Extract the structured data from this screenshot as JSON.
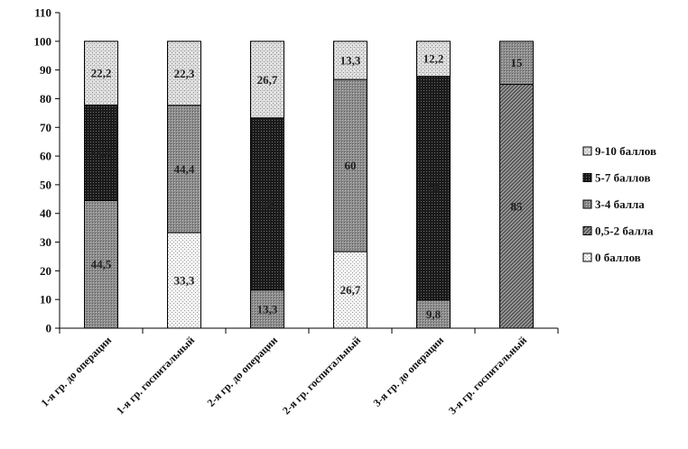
{
  "chart_data": {
    "type": "bar",
    "stacked": true,
    "title": "",
    "xlabel": "",
    "ylabel": "",
    "ylim": [
      0,
      110
    ],
    "yticks": [
      0,
      10,
      20,
      30,
      40,
      50,
      60,
      70,
      80,
      90,
      100,
      110
    ],
    "grid": false,
    "legend_position": "right",
    "categories": [
      "1-я гр. до операции",
      "1-я гр. госпитальный",
      "2-я гр. до операции",
      "2-я гр. госпитальный",
      "3-я гр. до операции",
      "3-я гр. госпитальный"
    ],
    "series": [
      {
        "name": "0 баллов",
        "values": [
          0,
          33.3,
          0,
          26.7,
          0,
          0
        ],
        "labels": [
          "",
          "33,3",
          "",
          "26,7",
          "",
          ""
        ],
        "pattern": "light-dots"
      },
      {
        "name": "0,5-2 балла",
        "values": [
          0,
          0,
          0,
          0,
          0,
          85
        ],
        "labels": [
          "",
          "",
          "",
          "",
          "",
          "85"
        ],
        "pattern": "diagonal-dark"
      },
      {
        "name": "3-4 балла",
        "values": [
          44.5,
          44.4,
          13.3,
          60,
          9.8,
          15
        ],
        "labels": [
          "44,5",
          "44,4",
          "13,3",
          "60",
          "9,8",
          "15"
        ],
        "pattern": "gray-dots"
      },
      {
        "name": "5-7 баллов",
        "values": [
          33.3,
          0,
          60,
          0,
          78,
          0
        ],
        "labels": [
          "33,3",
          "",
          "60",
          "",
          "78",
          ""
        ],
        "pattern": "dark-dots"
      },
      {
        "name": "9-10 баллов",
        "values": [
          22.2,
          22.3,
          26.7,
          13.3,
          12.2,
          0
        ],
        "labels": [
          "22,2",
          "22,3",
          "26,7",
          "13,3",
          "12,2",
          ""
        ],
        "pattern": "light-checker"
      }
    ],
    "legend_order": [
      "9-10 баллов",
      "5-7 баллов",
      "3-4 балла",
      "0,5-2 балла",
      "0 баллов"
    ]
  }
}
